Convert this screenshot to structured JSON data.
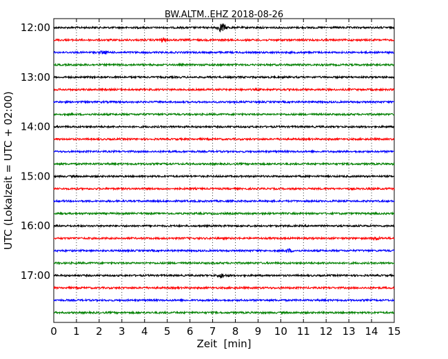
{
  "chart_data": {
    "type": "line",
    "title": "BW.ALTM..EHZ 2018-08-26",
    "xlabel": "Zeit  [min]",
    "ylabel": "UTC (Lokalzeit = UTC + 02:00)",
    "xlim": [
      0,
      15
    ],
    "x_ticks": [
      "0",
      "1",
      "2",
      "3",
      "4",
      "5",
      "6",
      "7",
      "8",
      "9",
      "10",
      "11",
      "12",
      "13",
      "14",
      "15"
    ],
    "y_tick_labels": [
      "12:00",
      "13:00",
      "14:00",
      "15:00",
      "16:00",
      "17:00"
    ],
    "trace_start_times": [
      "12:00",
      "12:15",
      "12:30",
      "12:45",
      "13:00",
      "13:15",
      "13:30",
      "13:45",
      "14:00",
      "14:15",
      "14:30",
      "14:45",
      "15:00",
      "15:15",
      "15:30",
      "15:45",
      "16:00",
      "16:15",
      "16:30",
      "16:45",
      "17:00",
      "17:15",
      "17:30",
      "17:45"
    ],
    "trace_colors": [
      "#000000",
      "#ff0000",
      "#0000ff",
      "#008000"
    ],
    "grid": "vertical dotted",
    "events": [
      {
        "trace": 0,
        "minute": 7.4,
        "amplitude": 1.0
      },
      {
        "trace": 1,
        "minute": 4.8,
        "amplitude": 0.35
      },
      {
        "trace": 2,
        "minute": 2.2,
        "amplitude": 0.3
      },
      {
        "trace": 17,
        "minute": 14.2,
        "amplitude": 0.3
      },
      {
        "trace": 18,
        "minute": 10.35,
        "amplitude": 0.3
      },
      {
        "trace": 20,
        "minute": 7.4,
        "amplitude": 0.35
      }
    ]
  }
}
